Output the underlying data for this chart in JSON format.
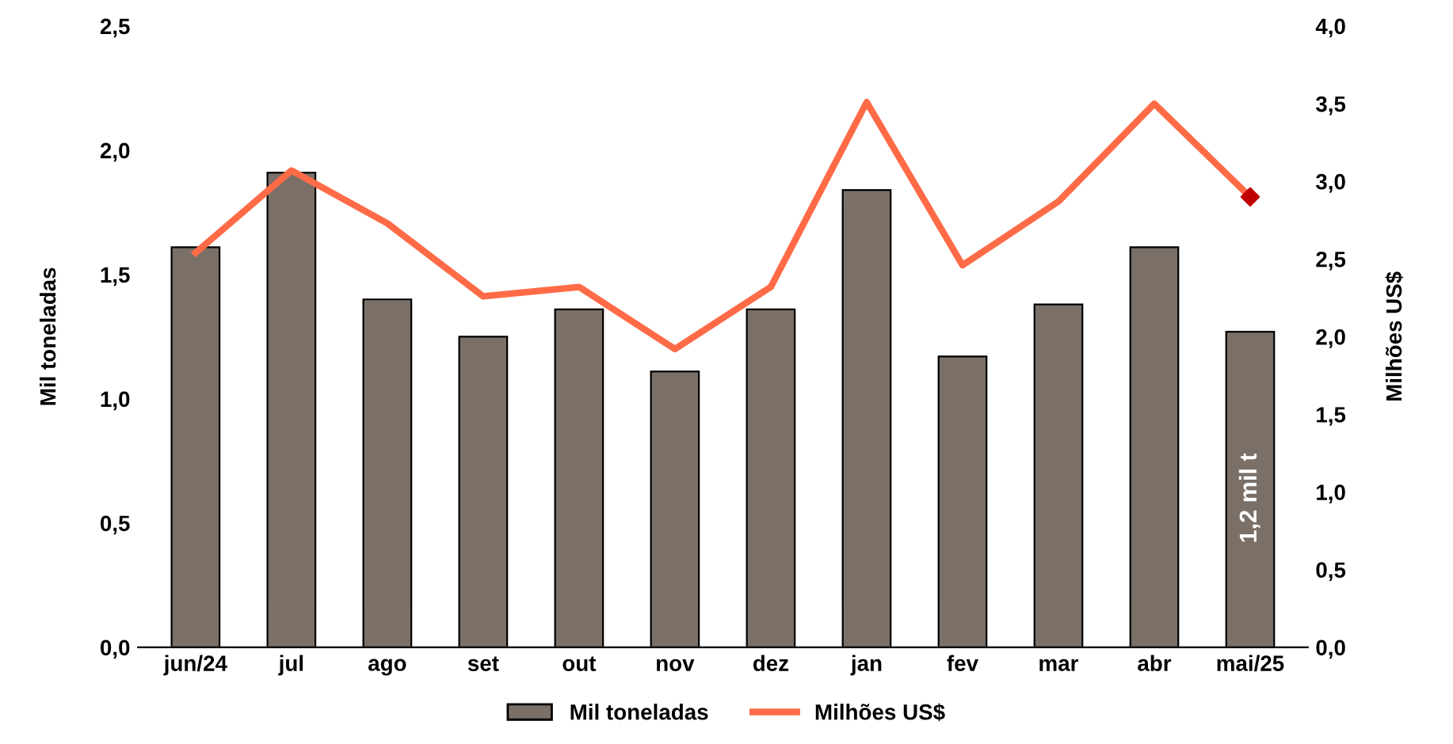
{
  "chart_data": {
    "type": "bar",
    "categories": [
      "jun/24",
      "jul",
      "ago",
      "set",
      "out",
      "nov",
      "dez",
      "jan",
      "fev",
      "mar",
      "abr",
      "mai/25"
    ],
    "ylabel": "Mil toneladas",
    "y2label": "Milhões US$",
    "series": [
      {
        "name": "Mil toneladas",
        "color": "#7a7068",
        "values": [
          1.61,
          1.91,
          1.4,
          1.25,
          1.36,
          1.11,
          1.36,
          1.84,
          1.17,
          1.38,
          1.61,
          1.27
        ]
      },
      {
        "name": "Milhões US$",
        "type": "line",
        "axis": "y2",
        "color": "#ff6b47",
        "line_style": "solid",
        "marker": "none",
        "values": [
          2.54,
          3.07,
          2.73,
          2.26,
          2.32,
          1.92,
          2.32,
          3.51,
          2.46,
          2.87,
          3.5,
          2.9
        ]
      },
      {
        "type": "scatter",
        "axis": "y2",
        "color": "#c00000",
        "marker": "diamond",
        "values": [
          null,
          null,
          null,
          null,
          null,
          null,
          null,
          null,
          null,
          null,
          null,
          2.9
        ]
      }
    ],
    "ylim": [
      0,
      2.5
    ],
    "yticks": [
      {
        "value": 0,
        "label": "0,0"
      },
      {
        "value": 0.5,
        "label": "0,5"
      },
      {
        "value": 1.0,
        "label": "1,0"
      },
      {
        "value": 1.5,
        "label": "1,5"
      },
      {
        "value": 2.0,
        "label": "2,0"
      },
      {
        "value": 2.5,
        "label": "2,5"
      }
    ],
    "y2lim": [
      0,
      4.0
    ],
    "y2ticks": [
      {
        "value": 0,
        "label": "0,0"
      },
      {
        "value": 0.5,
        "label": "0,5"
      },
      {
        "value": 1.0,
        "label": "1,0"
      },
      {
        "value": 1.5,
        "label": "1,5"
      },
      {
        "value": 2.0,
        "label": "2,0"
      },
      {
        "value": 2.5,
        "label": "2,5"
      },
      {
        "value": 3.0,
        "label": "3,0"
      },
      {
        "value": 3.5,
        "label": "3,5"
      },
      {
        "value": 4.0,
        "label": "4,0"
      }
    ],
    "annotations": [
      "1,2 mil t"
    ],
    "grid": false,
    "legend": "bottom"
  }
}
